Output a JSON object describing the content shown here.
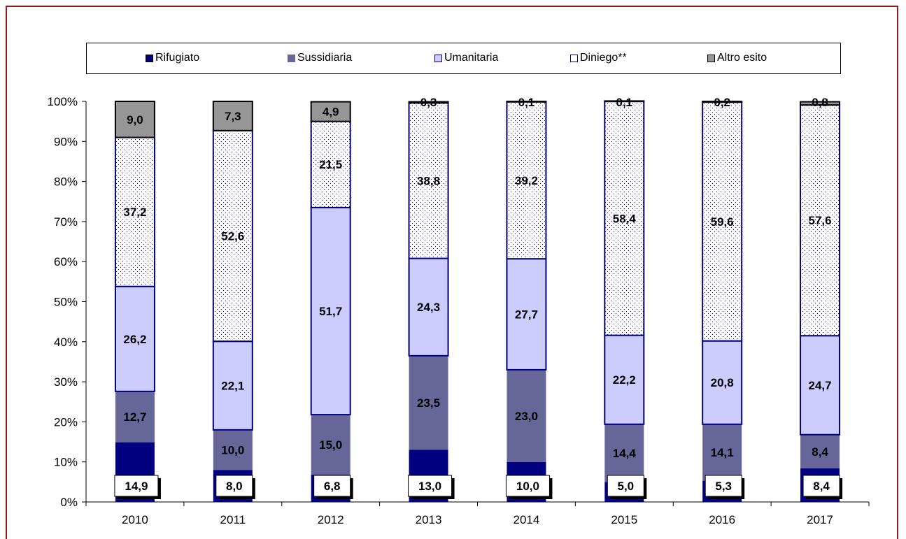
{
  "chart_data": {
    "type": "bar",
    "stacked": true,
    "categories": [
      "2010",
      "2011",
      "2012",
      "2013",
      "2014",
      "2015",
      "2016",
      "2017"
    ],
    "ylim": [
      0,
      100
    ],
    "yticks": [
      "0%",
      "10%",
      "20%",
      "30%",
      "40%",
      "50%",
      "60%",
      "70%",
      "80%",
      "90%",
      "100%"
    ],
    "legend_position": "top",
    "series": [
      {
        "name": "Rifugiato",
        "color": "#000080",
        "values": [
          14.9,
          8.0,
          6.8,
          13.0,
          10.0,
          5.0,
          5.3,
          8.4
        ],
        "labels": [
          "14,9",
          "8,0",
          "6,8",
          "13,0",
          "10,0",
          "5,0",
          "5,3",
          "8,4"
        ]
      },
      {
        "name": "Sussidiaria",
        "color": "#666699",
        "values": [
          12.7,
          10.0,
          15.0,
          23.5,
          23.0,
          14.4,
          14.1,
          8.4
        ],
        "labels": [
          "12,7",
          "10,0",
          "15,0",
          "23,5",
          "23,0",
          "14,4",
          "14,1",
          "8,4"
        ]
      },
      {
        "name": "Umanitaria",
        "color": "#ccccff",
        "values": [
          26.2,
          22.1,
          51.7,
          24.3,
          27.7,
          22.2,
          20.8,
          24.7
        ],
        "labels": [
          "26,2",
          "22,1",
          "51,7",
          "24,3",
          "27,7",
          "22,2",
          "20,8",
          "24,7"
        ]
      },
      {
        "name": "Diniego**",
        "color": "#ffffff",
        "values": [
          37.2,
          52.6,
          21.5,
          38.8,
          39.2,
          58.4,
          59.6,
          57.6
        ],
        "labels": [
          "37,2",
          "52,6",
          "21,5",
          "38,8",
          "39,2",
          "58,4",
          "59,6",
          "57,6"
        ]
      },
      {
        "name": "Altro esito",
        "color": "#969696",
        "values": [
          9.0,
          7.3,
          4.9,
          0.3,
          0.1,
          0.1,
          0.2,
          0.8
        ],
        "labels": [
          "9,0",
          "7,3",
          "4,9",
          "0,3",
          "0,1",
          "0,1",
          "0,2",
          "0,8"
        ]
      }
    ]
  }
}
